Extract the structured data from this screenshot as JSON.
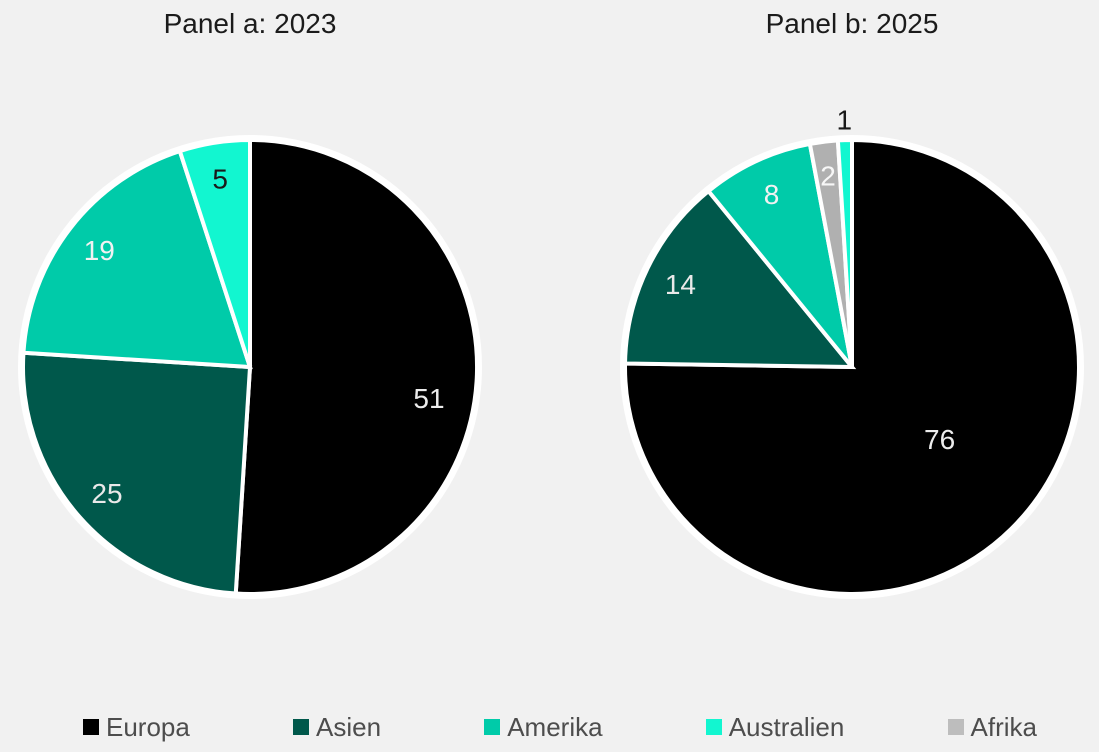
{
  "page": {
    "background": "#f1f1f1"
  },
  "chart_data": [
    {
      "type": "pie",
      "title": "Panel a: 2023",
      "legend_position": "bottom",
      "slice_border_color": "#ffffff",
      "slices": [
        {
          "label": "Europa",
          "value": 51,
          "color": "#000000",
          "text_color": "#ececec",
          "label_r": 0.8,
          "label_da": 8
        },
        {
          "label": "Asien",
          "value": 25,
          "color": "#00584B",
          "text_color": "#e9e9e9",
          "label_r": 0.84
        },
        {
          "label": "Amerika",
          "value": 19,
          "color": "#00CBA9",
          "text_color": "#f2f2f2",
          "label_r": 0.84
        },
        {
          "label": "Australien",
          "value": 5,
          "color": "#12F6D0",
          "text_color": "#1a1a1a",
          "label_r": 0.84
        }
      ]
    },
    {
      "type": "pie",
      "title": "Panel b: 2025",
      "legend_position": "bottom",
      "slice_border_color": "#ffffff",
      "slices": [
        {
          "label": "Europa",
          "value": 76,
          "color": "#000000",
          "text_color": "#ececec",
          "label_r": 0.5,
          "label_da": -6
        },
        {
          "label": "Asien",
          "value": 14,
          "color": "#00584B",
          "text_color": "#e9e9e9",
          "label_r": 0.84
        },
        {
          "label": "Amerika",
          "value": 8,
          "color": "#00CBA9",
          "text_color": "#f2f2f2",
          "label_r": 0.84
        },
        {
          "label": "Afrika",
          "value": 2,
          "color": "#B0B0B0",
          "text_color": "#f7f7f7",
          "label_r": 0.85
        },
        {
          "label": "Australien",
          "value": 1,
          "color": "#12F6D0",
          "text_color": "#1a1a1a",
          "label_r": 1.09,
          "label_outside": true
        }
      ]
    }
  ],
  "legend": {
    "items": [
      {
        "label": "Europa",
        "color": "#000000"
      },
      {
        "label": "Asien",
        "color": "#00584B"
      },
      {
        "label": "Amerika",
        "color": "#00CBA9"
      },
      {
        "label": "Australien",
        "color": "#12F6D0"
      },
      {
        "label": "Afrika",
        "color": "#BDBDBD"
      }
    ]
  }
}
